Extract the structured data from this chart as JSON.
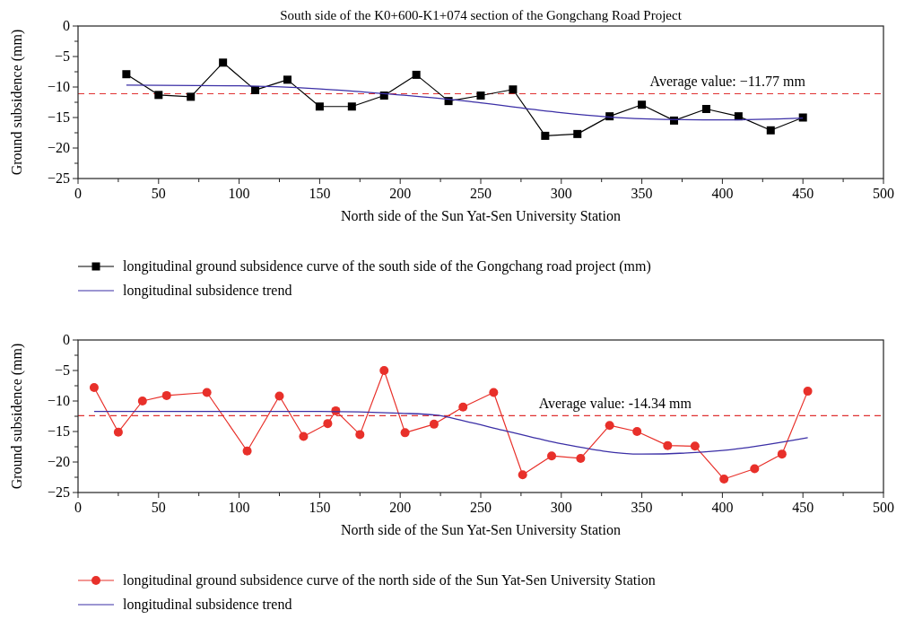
{
  "chart_data": [
    {
      "type": "line",
      "title": "South side of the K0+600-K1+074 section of the Gongchang Road Project",
      "xlabel": "North side of the Sun Yat-Sen University Station",
      "ylabel": "Ground subsidence (mm)",
      "xlim": [
        0,
        500
      ],
      "xticks": [
        0,
        {
          "value": 25,
          "label": null
        },
        50,
        {
          "value": 75,
          "label": null
        },
        100,
        {
          "value": 125,
          "label": null
        },
        150,
        {
          "value": 175,
          "label": null
        },
        200,
        {
          "value": 225,
          "label": null
        },
        250,
        {
          "value": 275,
          "label": null
        },
        300,
        {
          "value": 325,
          "label": null
        },
        350,
        {
          "value": 375,
          "label": null
        },
        400,
        {
          "value": 425,
          "label": null
        },
        450,
        {
          "value": 475,
          "label": null
        },
        500
      ],
      "ylim": [
        -25,
        0
      ],
      "yticks": [
        -25,
        {
          "value": -22.5,
          "label": null
        },
        -20,
        {
          "value": -17.5,
          "label": null
        },
        -15,
        {
          "value": -12.5,
          "label": null
        },
        -10,
        {
          "value": -7.5,
          "label": null
        },
        -5,
        {
          "value": -2.5,
          "label": null
        },
        0
      ],
      "grid": false,
      "legend": "bottom",
      "marker": "square",
      "series": [
        {
          "name": "longitudinal ground subsidence curve of the south side of the Gongchang road project (mm)",
          "color": "#000000",
          "x": [
            30,
            50,
            70,
            90,
            110,
            130,
            150,
            170,
            190,
            210,
            230,
            250,
            270,
            290,
            310,
            330,
            350,
            370,
            390,
            410,
            430,
            450
          ],
          "values": [
            -7.9,
            -11.3,
            -11.6,
            -6.0,
            -10.5,
            -8.8,
            -13.2,
            -13.2,
            -11.4,
            -8.0,
            -12.3,
            -11.4,
            -10.4,
            -18.0,
            -17.7,
            -14.8,
            -12.9,
            -15.5,
            -13.6,
            -14.8,
            -17.1,
            -15.0
          ]
        },
        {
          "name": "longitudinal subsidence trend",
          "color": "#3b2fa6",
          "marker": "none",
          "x": [
            30,
            100,
            150,
            200,
            230,
            250,
            300,
            350,
            400,
            450
          ],
          "values": [
            -9.7,
            -9.8,
            -10.3,
            -11.3,
            -12.0,
            -12.6,
            -14.2,
            -15.2,
            -15.4,
            -15.1
          ]
        }
      ],
      "ref_lines": [
        {
          "axis": "y",
          "value": -11.1,
          "color": "#e03030",
          "line_style": "dashed"
        }
      ],
      "annotations": [
        {
          "text": "Average value: −11.77 mm",
          "x": 355,
          "y": -11.1
        }
      ]
    },
    {
      "type": "line",
      "xlabel": "North side of the Sun Yat-Sen University Station",
      "ylabel": "Ground subsidence (mm)",
      "xlim": [
        0,
        500
      ],
      "xticks": [
        0,
        {
          "value": 25,
          "label": null
        },
        50,
        {
          "value": 75,
          "label": null
        },
        100,
        {
          "value": 125,
          "label": null
        },
        150,
        {
          "value": 175,
          "label": null
        },
        200,
        {
          "value": 225,
          "label": null
        },
        250,
        {
          "value": 275,
          "label": null
        },
        300,
        {
          "value": 325,
          "label": null
        },
        350,
        {
          "value": 375,
          "label": null
        },
        400,
        {
          "value": 425,
          "label": null
        },
        450,
        {
          "value": 475,
          "label": null
        },
        500
      ],
      "ylim": [
        -25,
        0
      ],
      "yticks": [
        -25,
        {
          "value": -22.5,
          "label": null
        },
        -20,
        {
          "value": -17.5,
          "label": null
        },
        -15,
        {
          "value": -12.5,
          "label": null
        },
        -10,
        {
          "value": -7.5,
          "label": null
        },
        -5,
        {
          "value": -2.5,
          "label": null
        },
        0
      ],
      "grid": false,
      "legend": "bottom",
      "marker": "circle",
      "series": [
        {
          "name": "longitudinal ground subsidence curve of the north side of the Sun Yat-Sen University Station",
          "color": "#e8302a",
          "x": [
            10,
            25,
            40,
            55,
            80,
            105,
            125,
            140,
            155,
            160,
            175,
            190,
            203,
            221,
            239,
            258,
            276,
            294,
            312,
            330,
            347,
            366,
            383,
            401,
            420,
            437,
            453
          ],
          "values": [
            -7.8,
            -15.1,
            -10.0,
            -9.1,
            -8.6,
            -18.2,
            -9.2,
            -15.8,
            -13.7,
            -11.6,
            -15.5,
            -5.0,
            -15.2,
            -13.8,
            -11.0,
            -8.6,
            -22.1,
            -19.0,
            -19.4,
            -14.0,
            -15.0,
            -17.3,
            -17.4,
            -22.8,
            -21.1,
            -18.7,
            -8.4
          ]
        },
        {
          "name": "longitudinal subsidence trend",
          "color": "#3b2fa6",
          "marker": "none",
          "x": [
            10,
            100,
            150,
            200,
            222,
            240,
            264,
            300,
            350,
            400,
            453
          ],
          "values": [
            -11.7,
            -11.7,
            -11.7,
            -12.0,
            -12.3,
            -13.3,
            -14.8,
            -17.0,
            -18.7,
            -18.1,
            -16.0
          ]
        }
      ],
      "ref_lines": [
        {
          "axis": "y",
          "value": -12.4,
          "color": "#e03030",
          "line_style": "dashed"
        }
      ],
      "annotations": [
        {
          "text": "Average value: -14.34 mm",
          "x": 286,
          "y": -12.4
        }
      ]
    }
  ]
}
